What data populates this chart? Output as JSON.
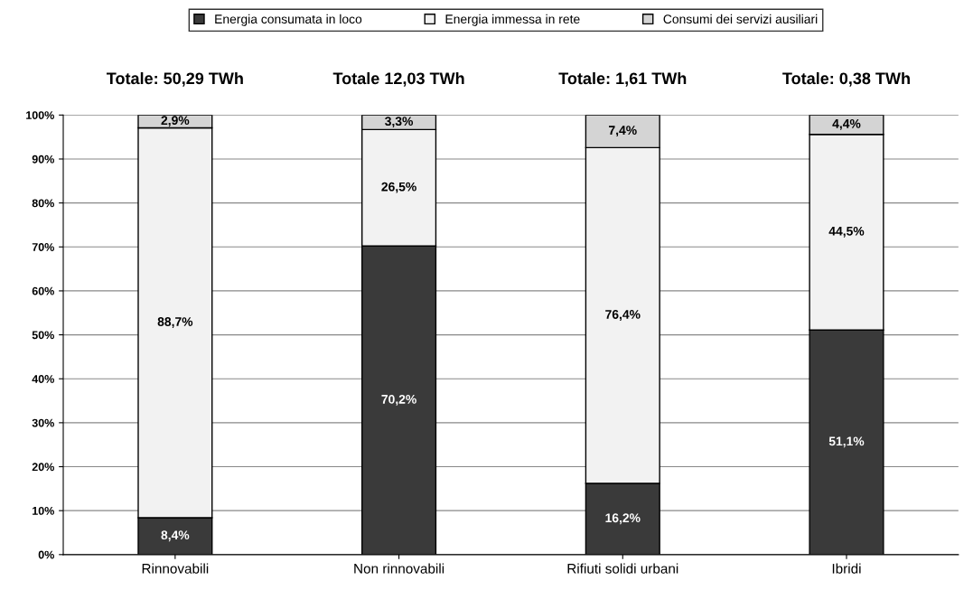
{
  "chart_data": {
    "type": "bar",
    "stacked": true,
    "categories": [
      "Rinnovabili",
      "Non rinnovabili",
      "Rifiuti solidi urbani",
      "Ibridi"
    ],
    "series": [
      {
        "name": "Energia consumata in loco",
        "color": "#3a3a3a",
        "values": [
          8.4,
          70.2,
          16.2,
          51.1
        ],
        "value_labels": [
          "8,4%",
          "70,2%",
          "16,2%",
          "51,1%"
        ]
      },
      {
        "name": "Energia immessa in rete",
        "color": "#f2f2f2",
        "values": [
          88.7,
          26.5,
          76.4,
          44.5
        ],
        "value_labels": [
          "88,7%",
          "26,5%",
          "76,4%",
          "44,5%"
        ]
      },
      {
        "name": "Consumi dei servizi ausiliari",
        "color": "#d4d4d4",
        "values": [
          2.9,
          3.3,
          7.4,
          4.4
        ],
        "value_labels": [
          "2,9%",
          "3,3%",
          "7,4%",
          "4,4%"
        ]
      }
    ],
    "annotations": [
      {
        "text": "Totale: 50,29 TWh",
        "x": "Rinnovabili",
        "y": 100
      },
      {
        "text": "Totale 12,03 TWh",
        "x": "Non rinnovabili",
        "y": 100
      },
      {
        "text": "Totale: 1,61 TWh",
        "x": "Rifiuti solidi urbani",
        "y": 100
      },
      {
        "text": "Totale: 0,38 TWh",
        "x": "Ibridi",
        "y": 100
      }
    ],
    "ylim": [
      0,
      100
    ],
    "yticks": [
      {
        "value": 0,
        "label": "0%"
      },
      {
        "value": 10,
        "label": "10%"
      },
      {
        "value": 20,
        "label": "20%"
      },
      {
        "value": 30,
        "label": "30%"
      },
      {
        "value": 40,
        "label": "40%"
      },
      {
        "value": 50,
        "label": "50%"
      },
      {
        "value": 60,
        "label": "60%"
      },
      {
        "value": 70,
        "label": "70%"
      },
      {
        "value": 80,
        "label": "80%"
      },
      {
        "value": 90,
        "label": "90%"
      },
      {
        "value": 100,
        "label": "100%"
      }
    ],
    "grid": "y",
    "legend": "top"
  }
}
